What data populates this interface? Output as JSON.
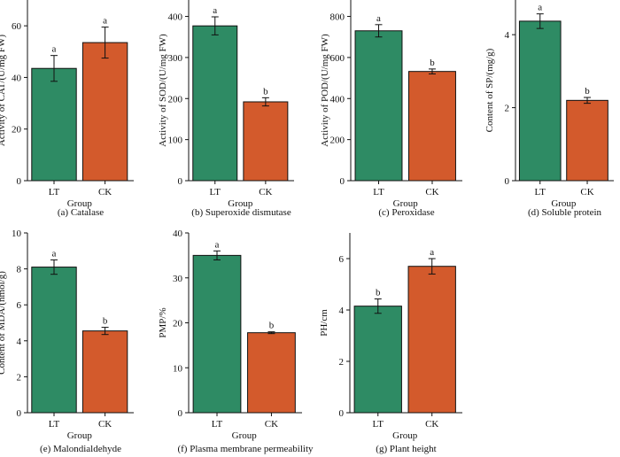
{
  "colors": {
    "LT": "#2e8b64",
    "CK": "#d35a2c",
    "axis": "#111111"
  },
  "chart_data": [
    {
      "type": "bar",
      "caption": "(a) Catalase",
      "xlabel": "Group",
      "ylabel": "Activity of CAT/(U/mg FW)",
      "categories": [
        "LT",
        "CK"
      ],
      "values": [
        43.5,
        53.5
      ],
      "errors": [
        5,
        6
      ],
      "letters": [
        "a",
        "a"
      ],
      "ylim": [
        0,
        70
      ],
      "yticks": [
        0,
        20,
        40,
        60
      ]
    },
    {
      "type": "bar",
      "caption": "(b) Superoxide dismutase",
      "xlabel": "Group",
      "ylabel": "Activity of SOD/(U/mg FW)",
      "categories": [
        "LT",
        "CK"
      ],
      "values": [
        377,
        192
      ],
      "errors": [
        22,
        10
      ],
      "letters": [
        "a",
        "b"
      ],
      "ylim": [
        0,
        440
      ],
      "yticks": [
        0,
        100,
        200,
        300,
        400
      ]
    },
    {
      "type": "bar",
      "caption": "(c) Peroxidase",
      "xlabel": "Group",
      "ylabel": "Activity of POD/(U/mg FW)",
      "categories": [
        "LT",
        "CK"
      ],
      "values": [
        730,
        532
      ],
      "errors": [
        30,
        12
      ],
      "letters": [
        "a",
        "b"
      ],
      "ylim": [
        0,
        880
      ],
      "yticks": [
        0,
        200,
        400,
        600,
        800
      ]
    },
    {
      "type": "bar",
      "caption": "(d) Soluble protein",
      "xlabel": "Group",
      "ylabel": "Content of SP/(mg/g)",
      "categories": [
        "LT",
        "CK"
      ],
      "values": [
        4.37,
        2.2
      ],
      "errors": [
        0.2,
        0.08
      ],
      "letters": [
        "a",
        "b"
      ],
      "ylim": [
        0,
        4.95
      ],
      "yticks": [
        0,
        2,
        4
      ]
    },
    {
      "type": "bar",
      "caption": "(e) Malondialdehyde",
      "xlabel": "Group",
      "ylabel": "Content of MDA/(nmol/g)",
      "categories": [
        "LT",
        "CK"
      ],
      "values": [
        8.1,
        4.55
      ],
      "errors": [
        0.4,
        0.2
      ],
      "letters": [
        "a",
        "b"
      ],
      "ylim": [
        0,
        10
      ],
      "yticks": [
        0,
        2,
        4,
        6,
        8,
        10
      ]
    },
    {
      "type": "bar",
      "caption": "(f) Plasma membrane permeability",
      "xlabel": "Group",
      "ylabel": "PMP/%",
      "categories": [
        "LT",
        "CK"
      ],
      "values": [
        35,
        17.8
      ],
      "errors": [
        1.0,
        0.2
      ],
      "letters": [
        "a",
        "b"
      ],
      "ylim": [
        0,
        40
      ],
      "yticks": [
        0,
        10,
        20,
        30,
        40
      ]
    },
    {
      "type": "bar",
      "caption": "(g) Plant height",
      "xlabel": "Group",
      "ylabel": "PH/cm",
      "categories": [
        "LT",
        "CK"
      ],
      "values": [
        4.15,
        5.7
      ],
      "errors": [
        0.28,
        0.3
      ],
      "letters": [
        "b",
        "a"
      ],
      "ylim": [
        0,
        7
      ],
      "yticks": [
        0,
        2,
        4,
        6
      ]
    }
  ]
}
